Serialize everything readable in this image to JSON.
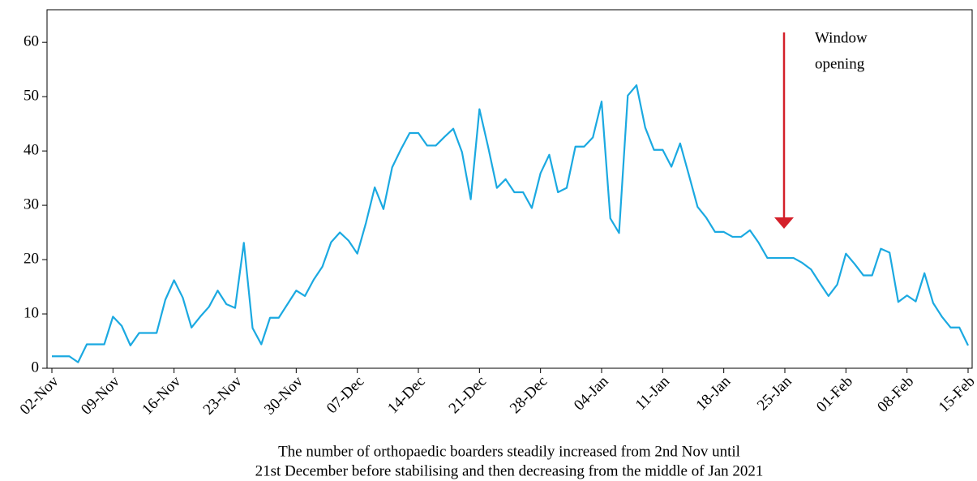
{
  "chart_data": {
    "type": "line",
    "categories": [
      "02-Nov",
      null,
      null,
      null,
      null,
      null,
      null,
      "09-Nov",
      null,
      null,
      null,
      null,
      null,
      null,
      "16-Nov",
      null,
      null,
      null,
      null,
      null,
      null,
      "23-Nov",
      null,
      null,
      null,
      null,
      null,
      null,
      "30-Nov",
      null,
      null,
      null,
      null,
      null,
      null,
      "07-Dec",
      null,
      null,
      null,
      null,
      null,
      null,
      "14-Dec",
      null,
      null,
      null,
      null,
      null,
      null,
      "21-Dec",
      null,
      null,
      null,
      null,
      null,
      null,
      "28-Dec",
      null,
      null,
      null,
      null,
      null,
      null,
      "04-Jan",
      null,
      null,
      null,
      null,
      null,
      null,
      "11-Jan",
      null,
      null,
      null,
      null,
      null,
      null,
      "18-Jan",
      null,
      null,
      null,
      null,
      null,
      null,
      "25-Jan",
      null,
      null,
      null,
      null,
      null,
      null,
      "01-Feb",
      null,
      null,
      null,
      null,
      null,
      null,
      "08-Feb",
      null,
      null,
      null,
      null,
      null,
      null,
      "15-Feb"
    ],
    "values": [
      2.2,
      2.2,
      2.2,
      1.1,
      4.4,
      4.4,
      4.4,
      9.5,
      7.8,
      4.2,
      6.5,
      6.5,
      6.5,
      12.6,
      16.2,
      13,
      7.5,
      9.5,
      11.3,
      14.3,
      11.8,
      11.1,
      23.1,
      7.4,
      4.4,
      9.3,
      9.3,
      11.8,
      14.3,
      13.3,
      16.3,
      18.7,
      23.2,
      25,
      23.5,
      21.1,
      26.8,
      33.3,
      29.3,
      37,
      40.3,
      43.3,
      43.3,
      41,
      41,
      42.6,
      44.1,
      39.8,
      31.1,
      47.7,
      40.7,
      33.2,
      34.8,
      32.4,
      32.4,
      29.5,
      35.9,
      39.3,
      32.4,
      33.2,
      40.8,
      40.8,
      42.5,
      49.1,
      27.6,
      24.9,
      50.2,
      52.1,
      44.3,
      40.2,
      40.2,
      37.1,
      41.4,
      35.6,
      29.7,
      27.7,
      25.1,
      25.1,
      24.2,
      24.2,
      25.4,
      23.1,
      20.3,
      20.3,
      20.3,
      20.3,
      19.4,
      18.2,
      15.7,
      13.3,
      15.4,
      21.1,
      19.2,
      17.1,
      17.1,
      22,
      21.3,
      12.2,
      13.4,
      12.3,
      17.5,
      12,
      9.5,
      7.5,
      7.5,
      4.2
    ],
    "color": "#1ba9e1",
    "ylim": [
      0,
      66
    ],
    "yticks": [
      0,
      10,
      20,
      30,
      40,
      50,
      60
    ],
    "annotation": [
      "Window",
      "opening"
    ],
    "annotation_color": "#d4202a",
    "caption": [
      "The number of orthopaedic boarders steadily increased from 2nd Nov until",
      "21st December before stabilising and then decreasing from the middle of Jan 2021"
    ]
  }
}
